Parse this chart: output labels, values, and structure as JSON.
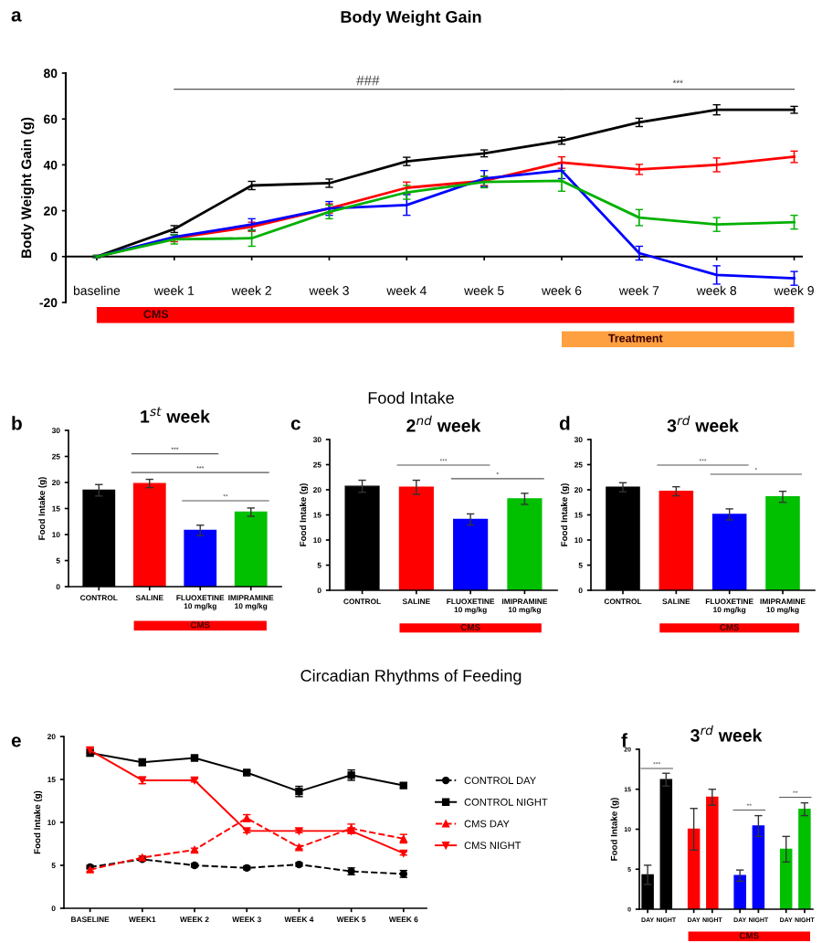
{
  "chart_data": [
    {
      "type": "line",
      "title": "Body Weight Gain",
      "ylabel": "Body Weight Gain (g)",
      "categories": [
        "baseline",
        "week 1",
        "week 2",
        "week 3",
        "week 4",
        "week 5",
        "week 6",
        "week 7",
        "week 8",
        "week 9"
      ],
      "ylim": [
        -20,
        80
      ],
      "yticks": [
        -20,
        0,
        20,
        40,
        60,
        80
      ],
      "series": [
        {
          "color": "#000000",
          "values": [
            0,
            12,
            31,
            32,
            41.5,
            45,
            50.5,
            58.5,
            64,
            64
          ],
          "errors": [
            0.5,
            1.5,
            1.8,
            1.8,
            1.8,
            1.5,
            1.5,
            1.8,
            2.2,
            1.5
          ]
        },
        {
          "color": "#ff0000",
          "values": [
            0,
            8,
            13,
            21,
            30,
            33,
            41,
            38,
            40,
            43.5
          ],
          "errors": [
            0.5,
            1.5,
            2,
            2,
            2.5,
            2,
            2.5,
            2.2,
            3,
            2.5
          ]
        },
        {
          "color": "#0000ff",
          "values": [
            0,
            8.5,
            14,
            21,
            22.5,
            34,
            37.5,
            1.5,
            -8,
            -9.5
          ],
          "errors": [
            0.5,
            1,
            2.5,
            3,
            4.5,
            3.5,
            3.5,
            3,
            4,
            3
          ]
        },
        {
          "color": "#00b000",
          "values": [
            0,
            7.5,
            8,
            19.5,
            28,
            32.5,
            33,
            17,
            14,
            15
          ],
          "errors": [
            0.5,
            2,
            3.5,
            3,
            3,
            2.5,
            4.5,
            3.5,
            3,
            3
          ]
        }
      ],
      "annotations": [
        "a",
        "###",
        "***",
        "CMS",
        "Treatment"
      ]
    },
    {
      "type": "bar",
      "title": "1$^{st}$ week",
      "ylabel": "Food Intake (g)",
      "categories": [
        "CONTROL",
        "SALINE",
        "FLUOXETINE\n10 mg/kg",
        "IMIPRAMINE\n10 mg/kg"
      ],
      "values": [
        18.5,
        19.8,
        10.8,
        14.3
      ],
      "errors": [
        1.1,
        0.8,
        1.0,
        0.8
      ],
      "colors": [
        "#000000",
        "#ff0000",
        "#0000ff",
        "#00c000"
      ],
      "ylim": [
        0,
        30
      ],
      "yticks": [
        0,
        5,
        10,
        15,
        20,
        25,
        30
      ],
      "annotations": [
        "b",
        "Food Intake",
        "***",
        "***",
        "**",
        "CMS"
      ]
    },
    {
      "type": "bar",
      "title": "2$^{nd}$ week",
      "ylabel": "Food Intake (g)",
      "categories": [
        "CONTROL",
        "SALINE",
        "FLUOXETINE\n10 mg/kg",
        "IMIPRAMINE\n10 mg/kg"
      ],
      "values": [
        20.7,
        20.5,
        14.1,
        18.2
      ],
      "errors": [
        1.2,
        1.4,
        1.1,
        1.1
      ],
      "colors": [
        "#000000",
        "#ff0000",
        "#0000ff",
        "#00c000"
      ],
      "ylim": [
        0,
        30
      ],
      "yticks": [
        0,
        5,
        10,
        15,
        20,
        25,
        30
      ],
      "annotations": [
        "c",
        "***",
        "*",
        "CMS"
      ]
    },
    {
      "type": "bar",
      "title": "3$^{rd}$ week",
      "ylabel": "Food Intake (g)",
      "categories": [
        "CONTROL",
        "SALINE",
        "FLUOXETINE\n10 mg/kg",
        "IMIPRAMINE\n10 mg/kg"
      ],
      "values": [
        20.5,
        19.7,
        15.1,
        18.6
      ],
      "errors": [
        0.9,
        0.9,
        1.1,
        1.1
      ],
      "colors": [
        "#000000",
        "#ff0000",
        "#0000ff",
        "#00c000"
      ],
      "ylim": [
        0,
        30
      ],
      "yticks": [
        0,
        5,
        10,
        15,
        20,
        25,
        30
      ],
      "annotations": [
        "d",
        "***",
        "*",
        "CMS"
      ]
    },
    {
      "type": "line",
      "ylabel": "Food Intake (g)",
      "categories": [
        "BASELINE",
        "WEEK1",
        "WEEK 2",
        "WEEK 3",
        "WEEK 4",
        "WEEK 5",
        "WEEK 6"
      ],
      "ylim": [
        0,
        20
      ],
      "yticks": [
        0,
        5,
        10,
        15,
        20
      ],
      "legend": "right",
      "series": [
        {
          "name": "CONTROL DAY",
          "color": "#000000",
          "marker": "circle",
          "line_style": "dashed",
          "values": [
            4.8,
            5.7,
            5.0,
            4.7,
            5.1,
            4.3,
            4.0
          ],
          "errors": [
            0.2,
            0.2,
            0.2,
            0.2,
            0.2,
            0.4,
            0.4
          ]
        },
        {
          "name": "CONTROL NIGHT",
          "color": "#000000",
          "marker": "square",
          "line_style": "solid",
          "values": [
            18.1,
            17.0,
            17.5,
            15.8,
            13.6,
            15.5,
            14.3
          ],
          "errors": [
            0.4,
            0.4,
            0.2,
            0.2,
            0.6,
            0.6,
            0.3
          ]
        },
        {
          "name": "CMS DAY",
          "color": "#ff0000",
          "marker": "triangle",
          "line_style": "dashed",
          "values": [
            4.5,
            5.9,
            6.8,
            10.5,
            7.1,
            9.3,
            8.1
          ],
          "errors": [
            0.2,
            0.2,
            0.2,
            0.4,
            0.2,
            0.5,
            0.5
          ]
        },
        {
          "name": "CMS NIGHT",
          "color": "#ff0000",
          "marker": "triangle-down",
          "line_style": "solid",
          "values": [
            18.4,
            14.9,
            14.9,
            9.0,
            9.0,
            9.0,
            6.4
          ],
          "errors": [
            0.3,
            0.4,
            0.2,
            0.2,
            0.2,
            0.3,
            0.2
          ]
        }
      ],
      "annotations": [
        "e",
        "Circadian Rhythms of Feeding"
      ]
    },
    {
      "type": "bar",
      "title": "3$^{rd}$ week",
      "ylabel": "Food Intake (g)",
      "categories": [
        "DAY",
        "NIGHT",
        "DAY",
        "NIGHT",
        "DAY",
        "NIGHT",
        "DAY",
        "NIGHT"
      ],
      "values": [
        4.3,
        16.2,
        10.0,
        14.0,
        4.2,
        10.4,
        7.5,
        12.5
      ],
      "errors": [
        1.2,
        0.8,
        2.6,
        1.0,
        0.7,
        1.3,
        1.6,
        0.8
      ],
      "colors": [
        "#000000",
        "#000000",
        "#ff0000",
        "#ff0000",
        "#0000ff",
        "#0000ff",
        "#00c000",
        "#00c000"
      ],
      "ylim": [
        0,
        20
      ],
      "yticks": [
        0,
        5,
        10,
        15,
        20
      ],
      "annotations": [
        "f",
        "***",
        "**",
        "**",
        "CMS"
      ]
    }
  ]
}
